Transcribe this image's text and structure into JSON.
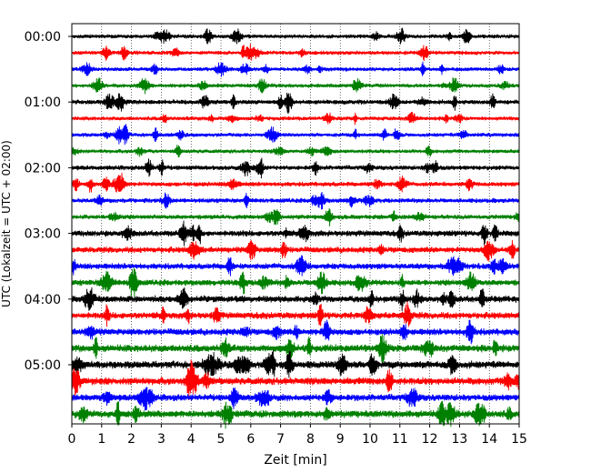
{
  "chart_data": {
    "type": "line",
    "title": "",
    "xlabel": "Zeit  [min]",
    "ylabel": "UTC (Lokalzeit = UTC + 02:00)",
    "xlim": [
      0,
      15
    ],
    "x_ticks": [
      "0",
      "1",
      "2",
      "3",
      "4",
      "5",
      "6",
      "7",
      "8",
      "9",
      "10",
      "11",
      "12",
      "13",
      "14",
      "15"
    ],
    "y_ticks": [
      "00:00",
      "01:00",
      "02:00",
      "03:00",
      "04:00",
      "05:00"
    ],
    "grid": "vertical dotted",
    "legend": "none",
    "trace_interval_min": 15,
    "trace_colors": [
      "#000000",
      "#ff0000",
      "#0000ff",
      "#008000"
    ],
    "traces": [
      {
        "start": "00:00",
        "color": "#000000",
        "amplitude": 0.6
      },
      {
        "start": "00:15",
        "color": "#ff0000",
        "amplitude": 0.6
      },
      {
        "start": "00:30",
        "color": "#0000ff",
        "amplitude": 0.6
      },
      {
        "start": "00:45",
        "color": "#008000",
        "amplitude": 0.6
      },
      {
        "start": "01:00",
        "color": "#000000",
        "amplitude": 0.7
      },
      {
        "start": "01:15",
        "color": "#ff0000",
        "amplitude": 0.6
      },
      {
        "start": "01:30",
        "color": "#0000ff",
        "amplitude": 0.6
      },
      {
        "start": "01:45",
        "color": "#008000",
        "amplitude": 0.6
      },
      {
        "start": "02:00",
        "color": "#000000",
        "amplitude": 0.7
      },
      {
        "start": "02:15",
        "color": "#ff0000",
        "amplitude": 0.7
      },
      {
        "start": "02:30",
        "color": "#0000ff",
        "amplitude": 0.7
      },
      {
        "start": "02:45",
        "color": "#008000",
        "amplitude": 0.7
      },
      {
        "start": "03:00",
        "color": "#000000",
        "amplitude": 0.9
      },
      {
        "start": "03:15",
        "color": "#ff0000",
        "amplitude": 0.9
      },
      {
        "start": "03:30",
        "color": "#0000ff",
        "amplitude": 0.9
      },
      {
        "start": "03:45",
        "color": "#008000",
        "amplitude": 0.9
      },
      {
        "start": "04:00",
        "color": "#000000",
        "amplitude": 1.0
      },
      {
        "start": "04:15",
        "color": "#ff0000",
        "amplitude": 1.0
      },
      {
        "start": "04:30",
        "color": "#0000ff",
        "amplitude": 1.0
      },
      {
        "start": "04:45",
        "color": "#008000",
        "amplitude": 1.1
      },
      {
        "start": "05:00",
        "color": "#000000",
        "amplitude": 1.1
      },
      {
        "start": "05:15",
        "color": "#ff0000",
        "amplitude": 1.1
      },
      {
        "start": "05:30",
        "color": "#0000ff",
        "amplitude": 1.0
      },
      {
        "start": "05:45",
        "color": "#008000",
        "amplitude": 1.1
      }
    ]
  }
}
